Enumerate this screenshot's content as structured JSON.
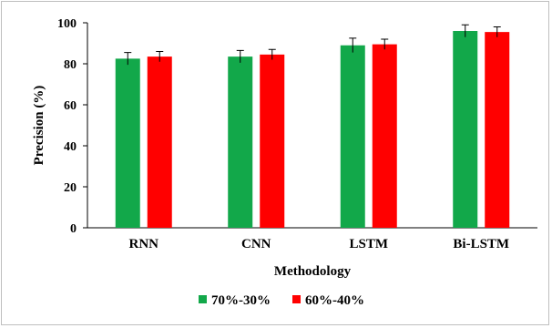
{
  "chart_data": {
    "type": "bar",
    "categories": [
      "RNN",
      "CNN",
      "LSTM",
      "Bi-LSTM"
    ],
    "series": [
      {
        "name": "70%-30%",
        "color": "#12a84a",
        "values": [
          82.5,
          83.5,
          89,
          96
        ],
        "errors": [
          3,
          3,
          3.5,
          3
        ]
      },
      {
        "name": "60%-40%",
        "color": "#ff0000",
        "values": [
          83.5,
          84.5,
          89.5,
          95.5
        ],
        "errors": [
          2.5,
          2.5,
          2.5,
          2.5
        ]
      }
    ],
    "xlabel": "Methodology",
    "ylabel": "Precision (%)",
    "ylim": [
      0,
      100
    ],
    "yticks": [
      0,
      20,
      40,
      60,
      80,
      100
    ],
    "grid": false,
    "legend_position": "bottom"
  }
}
